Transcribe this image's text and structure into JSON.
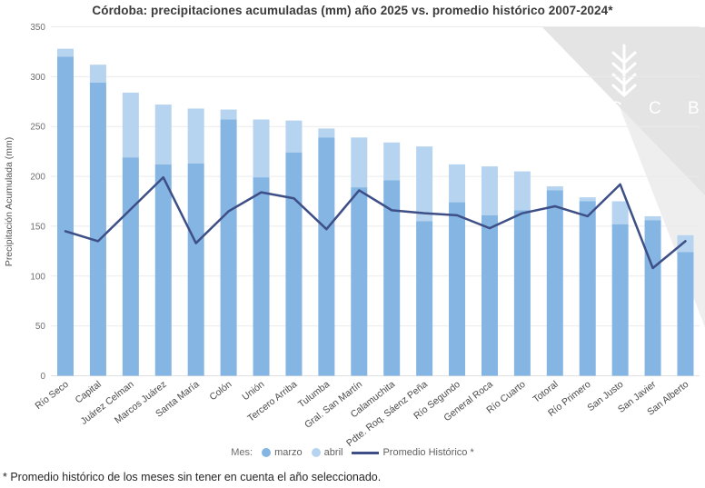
{
  "title": "Córdoba: precipitaciones acumuladas (mm) año 2025 vs. promedio histórico 2007-2024*",
  "watermark": {
    "letters": "B C C B A",
    "icon": "wheat-icon"
  },
  "legend": {
    "prefix": "Mes:"
  },
  "footnote": "* Promedio histórico de los meses sin tener en cuenta el año seleccionado.",
  "colors": {
    "marzo": "#84b5e3",
    "abril": "#b6d4ef",
    "line": "#3d4f86",
    "grid": "#ebebeb",
    "axis_zero": "#e0e0e0",
    "tick_text": "#707070",
    "category_text": "#4a4a4a",
    "watermark_dark": "#e4e4e4",
    "watermark_light": "#eeeeee"
  },
  "chart_data": {
    "type": "bar",
    "stacked": true,
    "title": "Córdoba: precipitaciones acumuladas (mm) año 2025 vs. promedio histórico 2007-2024*",
    "xlabel": "",
    "ylabel": "Precipitación Acumulada (mm)",
    "ylim": [
      0,
      350
    ],
    "yticks": [
      0,
      50,
      100,
      150,
      200,
      250,
      300,
      350
    ],
    "grid": true,
    "legend_position": "bottom",
    "categories": [
      "Río Seco",
      "Capital",
      "Juárez Celman",
      "Marcos Juárez",
      "Santa María",
      "Colón",
      "Unión",
      "Tercero Arriba",
      "Tulumba",
      "Gral. San Martín",
      "Calamuchita",
      "Pdte. Roq. Sáenz Peña",
      "Río Segundo",
      "General Roca",
      "Río Cuarto",
      "Totoral",
      "Río Primero",
      "San Justo",
      "San Javier",
      "San Alberto"
    ],
    "series": [
      {
        "name": "marzo",
        "type": "bar",
        "color": "#84b5e3",
        "values": [
          320,
          294,
          219,
          212,
          213,
          257,
          199,
          224,
          239,
          189,
          196,
          155,
          174,
          161,
          166,
          186,
          175,
          152,
          156,
          124
        ]
      },
      {
        "name": "abril",
        "type": "bar",
        "color": "#b6d4ef",
        "values": [
          8,
          18,
          65,
          60,
          55,
          10,
          58,
          32,
          9,
          50,
          38,
          75,
          38,
          49,
          39,
          4,
          4,
          23,
          4,
          17
        ]
      },
      {
        "name": "Promedio Histórico *",
        "type": "line",
        "color": "#3d4f86",
        "values": [
          145,
          135,
          167,
          199,
          133,
          165,
          184,
          178,
          147,
          186,
          166,
          163,
          161,
          148,
          163,
          170,
          160,
          192,
          108,
          135
        ]
      }
    ],
    "totals": [
      328,
      312,
      284,
      272,
      268,
      267,
      257,
      256,
      248,
      239,
      234,
      230,
      212,
      210,
      205,
      190,
      179,
      175,
      160,
      141
    ]
  }
}
